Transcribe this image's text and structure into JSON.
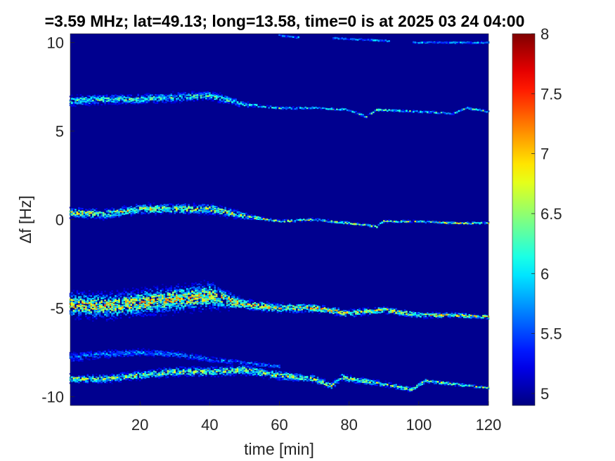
{
  "chart_data": {
    "type": "heatmap",
    "title": "=3.59 MHz;  lat=49.13; long=13.58, time=0 is at 2025 03 24 04:00",
    "xlabel": "time [min]",
    "ylabel": "∆f [Hz]",
    "xlim": [
      0,
      120
    ],
    "ylim": [
      -10.5,
      10.5
    ],
    "x_ticks": [
      20,
      40,
      60,
      80,
      100,
      120
    ],
    "x_tick_labels": [
      "20",
      "40",
      "60",
      "80",
      "100",
      "120"
    ],
    "y_ticks": [
      -10,
      -5,
      0,
      5,
      10
    ],
    "y_tick_labels": [
      "-10",
      "-5",
      "0",
      "5",
      "10"
    ],
    "colorbar": {
      "colormap": "jet",
      "clim": [
        4.9,
        8
      ],
      "ticks": [
        5,
        5.5,
        6,
        6.5,
        7,
        7.5,
        8
      ],
      "tick_labels": [
        "5",
        "5.5",
        "6",
        "6.5",
        "7",
        "7.5",
        "8"
      ]
    },
    "background_value": 4.95,
    "traces": [
      {
        "points": [
          [
            0,
            -4.8
          ],
          [
            10,
            -4.9
          ],
          [
            20,
            -4.7
          ],
          [
            30,
            -4.5
          ],
          [
            40,
            -4.3
          ],
          [
            50,
            -4.8
          ],
          [
            60,
            -5.0
          ],
          [
            70,
            -5.0
          ],
          [
            80,
            -5.3
          ],
          [
            90,
            -5.1
          ],
          [
            100,
            -5.4
          ],
          [
            110,
            -5.4
          ],
          [
            120,
            -5.5
          ]
        ],
        "peak": 7.2,
        "spread": [
          [
            0,
            1.2
          ],
          [
            40,
            1.3
          ],
          [
            50,
            0.5
          ],
          [
            120,
            0.2
          ]
        ]
      },
      {
        "points": [
          [
            0,
            -9.0
          ],
          [
            10,
            -9.0
          ],
          [
            20,
            -8.8
          ],
          [
            30,
            -8.6
          ],
          [
            40,
            -8.6
          ],
          [
            50,
            -8.5
          ],
          [
            60,
            -8.8
          ],
          [
            70,
            -9.0
          ],
          [
            75,
            -9.4
          ],
          [
            78,
            -8.9
          ],
          [
            80,
            -9.0
          ],
          [
            90,
            -9.3
          ],
          [
            98,
            -9.6
          ],
          [
            102,
            -9.1
          ],
          [
            110,
            -9.3
          ],
          [
            120,
            -9.5
          ]
        ],
        "peak": 6.8,
        "spread": [
          [
            0,
            0.4
          ],
          [
            50,
            0.5
          ],
          [
            120,
            0.12
          ]
        ]
      },
      {
        "points": [
          [
            0,
            0.4
          ],
          [
            10,
            0.3
          ],
          [
            20,
            0.6
          ],
          [
            30,
            0.6
          ],
          [
            40,
            0.6
          ],
          [
            50,
            0.2
          ],
          [
            60,
            -0.1
          ],
          [
            70,
            0.0
          ],
          [
            80,
            -0.2
          ],
          [
            88,
            -0.4
          ],
          [
            90,
            -0.1
          ],
          [
            100,
            -0.1
          ],
          [
            110,
            -0.2
          ],
          [
            120,
            -0.2
          ]
        ],
        "peak": 6.9,
        "spread": [
          [
            0,
            0.5
          ],
          [
            45,
            0.5
          ],
          [
            55,
            0.15
          ],
          [
            120,
            0.1
          ]
        ]
      },
      {
        "points": [
          [
            0,
            6.7
          ],
          [
            10,
            6.8
          ],
          [
            20,
            6.8
          ],
          [
            30,
            6.9
          ],
          [
            40,
            7.0
          ],
          [
            50,
            6.5
          ],
          [
            60,
            6.3
          ],
          [
            70,
            6.3
          ],
          [
            80,
            6.2
          ],
          [
            85,
            5.8
          ],
          [
            88,
            6.2
          ],
          [
            100,
            6.1
          ],
          [
            110,
            6.0
          ],
          [
            114,
            6.3
          ],
          [
            120,
            6.1
          ]
        ],
        "peak": 6.5,
        "spread": [
          [
            0,
            0.5
          ],
          [
            45,
            0.45
          ],
          [
            55,
            0.12
          ],
          [
            120,
            0.1
          ]
        ]
      },
      {
        "points": [
          [
            60,
            10.4
          ],
          [
            65,
            10.3
          ],
          [
            70,
            10.3
          ],
          [
            80,
            10.2
          ],
          [
            90,
            10.1
          ],
          [
            100,
            10.0
          ],
          [
            110,
            10.0
          ],
          [
            120,
            10.0
          ]
        ],
        "peak": 6.0,
        "spread": [
          [
            60,
            0.08
          ],
          [
            120,
            0.08
          ]
        ],
        "gaps": [
          [
            66,
            75
          ],
          [
            92,
            98
          ]
        ]
      },
      {
        "points": [
          [
            0,
            -7.8
          ],
          [
            10,
            -7.6
          ],
          [
            20,
            -7.5
          ],
          [
            30,
            -7.6
          ],
          [
            40,
            -7.9
          ],
          [
            50,
            -8.1
          ],
          [
            60,
            -8.3
          ]
        ],
        "peak": 5.9,
        "spread": [
          [
            0,
            0.5
          ],
          [
            60,
            0.2
          ]
        ]
      }
    ]
  }
}
